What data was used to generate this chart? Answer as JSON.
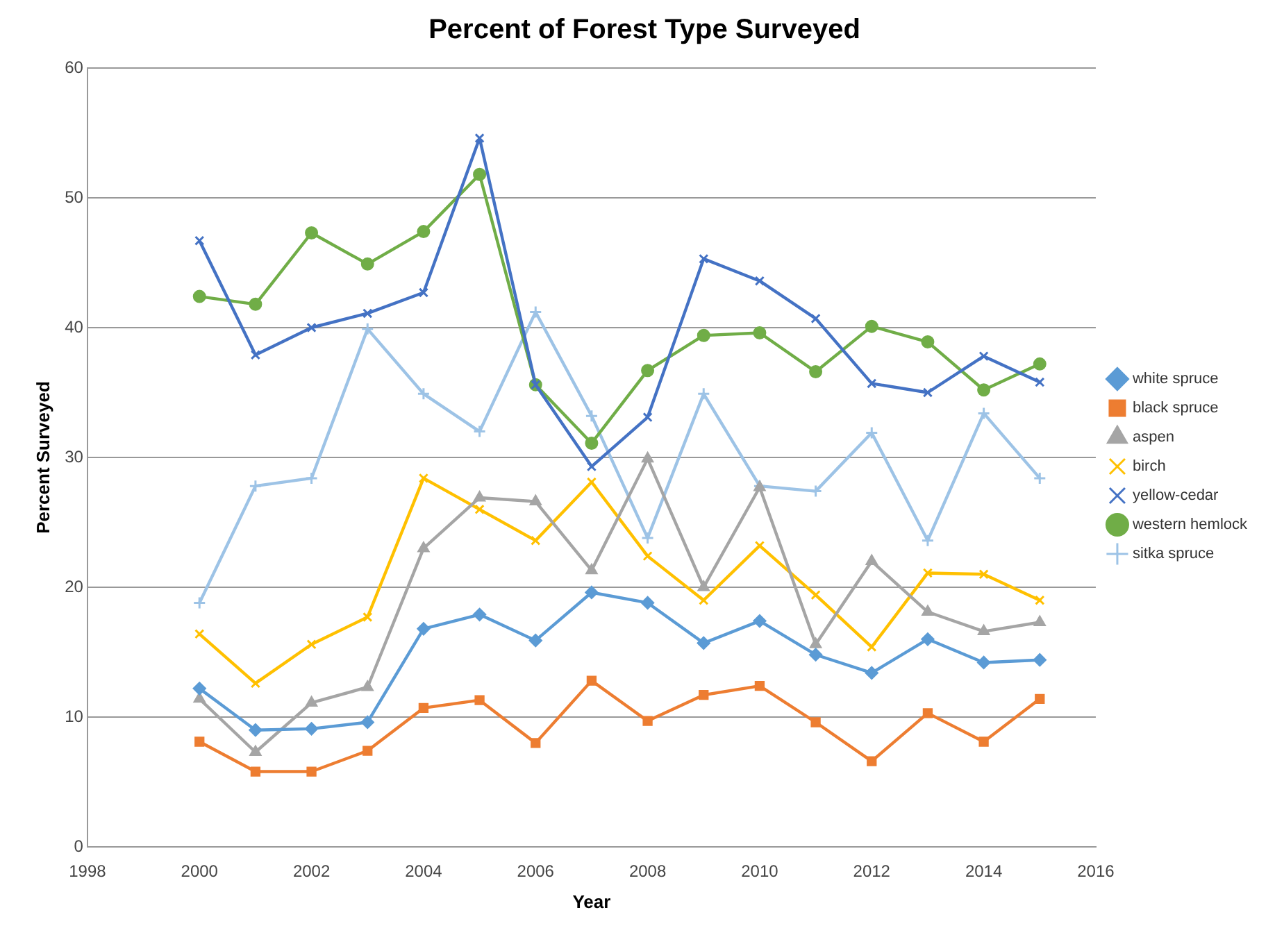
{
  "chart_data": {
    "type": "line",
    "title": "Percent of Forest Type Surveyed",
    "xlabel": "Year",
    "ylabel": "Percent Surveyed",
    "x": [
      2000,
      2001,
      2002,
      2003,
      2004,
      2005,
      2006,
      2007,
      2008,
      2009,
      2010,
      2011,
      2012,
      2013,
      2014,
      2015
    ],
    "xlim": [
      1998,
      2016
    ],
    "xticks": [
      1998,
      2000,
      2002,
      2004,
      2006,
      2008,
      2010,
      2012,
      2014,
      2016
    ],
    "ylim": [
      0,
      60
    ],
    "yticks": [
      0,
      10,
      20,
      30,
      40,
      50,
      60
    ],
    "grid": "y",
    "legend": "right",
    "line_style": "solid",
    "series": [
      {
        "name": "white spruce",
        "color": "#5b9bd5",
        "marker": "diamond",
        "values": [
          12.2,
          9.0,
          9.1,
          9.6,
          16.8,
          17.9,
          15.9,
          19.6,
          18.8,
          15.7,
          17.4,
          14.8,
          13.4,
          16.0,
          14.2,
          14.4
        ]
      },
      {
        "name": "black spruce",
        "color": "#ed7d31",
        "marker": "square",
        "values": [
          8.1,
          5.8,
          5.8,
          7.4,
          10.7,
          11.3,
          8.0,
          12.8,
          9.7,
          11.7,
          12.4,
          9.6,
          6.6,
          10.3,
          8.1,
          11.4
        ]
      },
      {
        "name": "aspen",
        "color": "#a5a5a5",
        "marker": "triangle",
        "values": [
          11.4,
          7.3,
          11.1,
          12.3,
          23.0,
          26.9,
          26.6,
          21.3,
          29.9,
          20.0,
          27.7,
          15.6,
          22.0,
          18.1,
          16.6,
          17.3
        ]
      },
      {
        "name": "birch",
        "color": "#ffc000",
        "marker": "cross",
        "values": [
          16.4,
          12.6,
          15.6,
          17.7,
          28.4,
          26.0,
          23.6,
          28.1,
          22.4,
          19.0,
          23.2,
          19.4,
          15.4,
          21.1,
          21.0,
          19.0
        ]
      },
      {
        "name": "yellow-cedar",
        "color": "#4472c4",
        "marker": "cross",
        "values": [
          46.7,
          37.9,
          40.0,
          41.1,
          42.7,
          54.6,
          35.6,
          29.3,
          33.1,
          45.3,
          43.6,
          40.7,
          35.7,
          35.0,
          37.8,
          35.8
        ]
      },
      {
        "name": "western hemlock",
        "color": "#70ad47",
        "marker": "circle",
        "values": [
          42.4,
          41.8,
          47.3,
          44.9,
          47.4,
          51.8,
          35.6,
          31.1,
          36.7,
          39.4,
          39.6,
          36.6,
          40.1,
          38.9,
          35.2,
          37.2
        ]
      },
      {
        "name": "sitka spruce",
        "color": "#9dc3e6",
        "marker": "plus",
        "values": [
          18.8,
          27.8,
          28.4,
          39.9,
          34.9,
          32.0,
          41.2,
          33.2,
          23.8,
          34.9,
          27.8,
          27.4,
          31.9,
          23.6,
          33.4,
          28.4
        ]
      }
    ]
  }
}
